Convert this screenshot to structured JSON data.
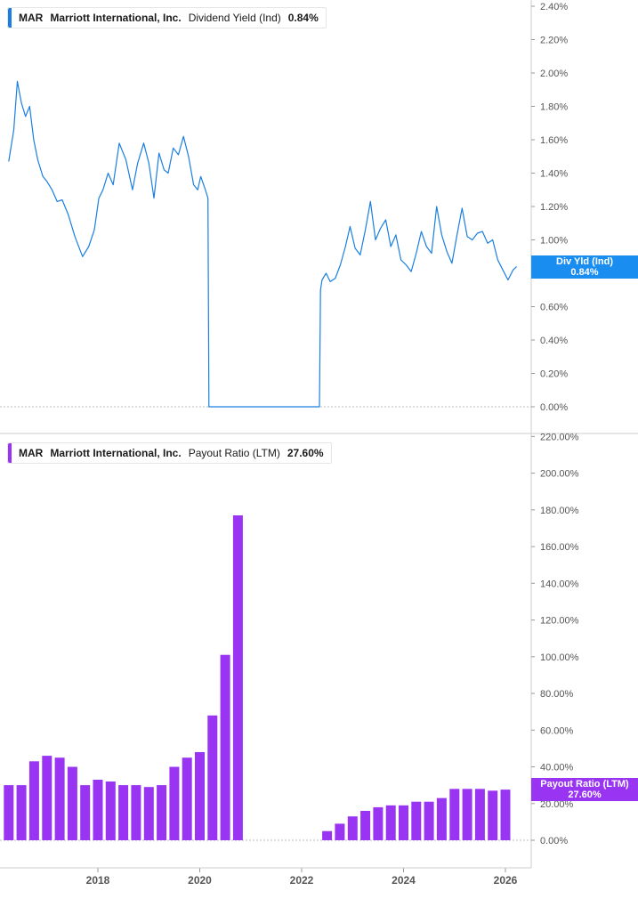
{
  "colors": {
    "yield_line": "#1a7fe0",
    "payout_bar": "#9a34f3",
    "axis_text": "#555555",
    "grid": "#bbbbbb"
  },
  "x_ticks": [
    "2018",
    "2020",
    "2022",
    "2024",
    "2026"
  ],
  "top_panel": {
    "ticker": "MAR",
    "company": "Marriott International, Inc.",
    "metric": "Dividend Yield (Ind)",
    "value": "0.84%",
    "flag_label": "Div Yld (Ind)",
    "flag_value": "0.84%",
    "y_ticks": [
      "2.40%",
      "2.20%",
      "2.00%",
      "1.80%",
      "1.60%",
      "1.40%",
      "1.20%",
      "1.00%",
      "0.60%",
      "0.40%",
      "0.20%",
      "0.00%"
    ]
  },
  "bottom_panel": {
    "ticker": "MAR",
    "company": "Marriott International, Inc.",
    "metric": "Payout Ratio (LTM)",
    "value": "27.60%",
    "flag_label": "Payout Ratio (LTM)",
    "flag_value": "27.60%",
    "y_ticks": [
      "220.00%",
      "200.00%",
      "180.00%",
      "160.00%",
      "140.00%",
      "120.00%",
      "100.00%",
      "80.00%",
      "60.00%",
      "40.00%",
      "20.00%",
      "0.00%"
    ]
  },
  "chart_data": [
    {
      "type": "line",
      "series": [
        {
          "name": "Dividend Yield (Ind)",
          "x": [
            2016.25,
            2016.35,
            2016.42,
            2016.5,
            2016.58,
            2016.66,
            2016.74,
            2016.82,
            2016.92,
            2017.0,
            2017.1,
            2017.2,
            2017.3,
            2017.42,
            2017.55,
            2017.7,
            2017.82,
            2017.93,
            2018.02,
            2018.1,
            2018.2,
            2018.3,
            2018.42,
            2018.55,
            2018.68,
            2018.78,
            2018.9,
            2019.0,
            2019.1,
            2019.2,
            2019.3,
            2019.38,
            2019.48,
            2019.58,
            2019.68,
            2019.78,
            2019.88,
            2019.96,
            2020.02,
            2020.1,
            2020.16,
            2020.18,
            2022.35,
            2022.37,
            2022.4,
            2022.48,
            2022.56,
            2022.66,
            2022.76,
            2022.86,
            2022.95,
            2023.05,
            2023.15,
            2023.25,
            2023.35,
            2023.45,
            2023.55,
            2023.65,
            2023.75,
            2023.85,
            2023.95,
            2024.05,
            2024.15,
            2024.25,
            2024.35,
            2024.45,
            2024.55,
            2024.65,
            2024.75,
            2024.85,
            2024.95,
            2025.05,
            2025.15,
            2025.25,
            2025.35,
            2025.45,
            2025.55,
            2025.65,
            2025.75,
            2025.85,
            2025.95,
            2026.05,
            2026.15,
            2026.22
          ],
          "y": [
            1.47,
            1.66,
            1.95,
            1.82,
            1.74,
            1.8,
            1.6,
            1.48,
            1.38,
            1.35,
            1.3,
            1.23,
            1.24,
            1.15,
            1.02,
            0.9,
            0.96,
            1.06,
            1.25,
            1.3,
            1.4,
            1.33,
            1.58,
            1.48,
            1.3,
            1.46,
            1.58,
            1.46,
            1.25,
            1.52,
            1.42,
            1.4,
            1.55,
            1.51,
            1.62,
            1.5,
            1.33,
            1.3,
            1.38,
            1.31,
            1.25,
            0.0,
            0.0,
            0.7,
            0.76,
            0.8,
            0.75,
            0.77,
            0.85,
            0.96,
            1.08,
            0.95,
            0.91,
            1.06,
            1.23,
            1.0,
            1.07,
            1.12,
            0.96,
            1.03,
            0.88,
            0.85,
            0.81,
            0.92,
            1.05,
            0.96,
            0.92,
            1.2,
            1.03,
            0.93,
            0.86,
            1.03,
            1.19,
            1.02,
            1.0,
            1.04,
            1.05,
            0.98,
            1.0,
            0.88,
            0.82,
            0.76,
            0.82,
            0.84
          ],
          "color": "#1a7fe0"
        }
      ],
      "ylim": [
        0,
        2.4
      ],
      "xlim": [
        2016.25,
        2026.52
      ],
      "grid": false,
      "legend": "top-left"
    },
    {
      "type": "bar",
      "series": [
        {
          "name": "Payout Ratio (LTM)",
          "x": [
            2016.25,
            2016.5,
            2016.75,
            2017.0,
            2017.25,
            2017.5,
            2017.75,
            2018.0,
            2018.25,
            2018.5,
            2018.75,
            2019.0,
            2019.25,
            2019.5,
            2019.75,
            2020.0,
            2020.25,
            2020.5,
            2020.75,
            2022.5,
            2022.75,
            2023.0,
            2023.25,
            2023.5,
            2023.75,
            2024.0,
            2024.25,
            2024.5,
            2024.75,
            2025.0,
            2025.25,
            2025.5,
            2025.75,
            2026.0
          ],
          "y": [
            30,
            30,
            43,
            46,
            45,
            40,
            30,
            33,
            32,
            30,
            30,
            29,
            30,
            40,
            45,
            48,
            68,
            101,
            177,
            5,
            9,
            13,
            16,
            18,
            19,
            19,
            21,
            21,
            23,
            28,
            28,
            28,
            27,
            27.6
          ],
          "color": "#9a34f3"
        }
      ],
      "ylim": [
        0,
        220
      ],
      "xlim": [
        2016.25,
        2026.52
      ],
      "grid": false,
      "legend": "top-left"
    }
  ]
}
